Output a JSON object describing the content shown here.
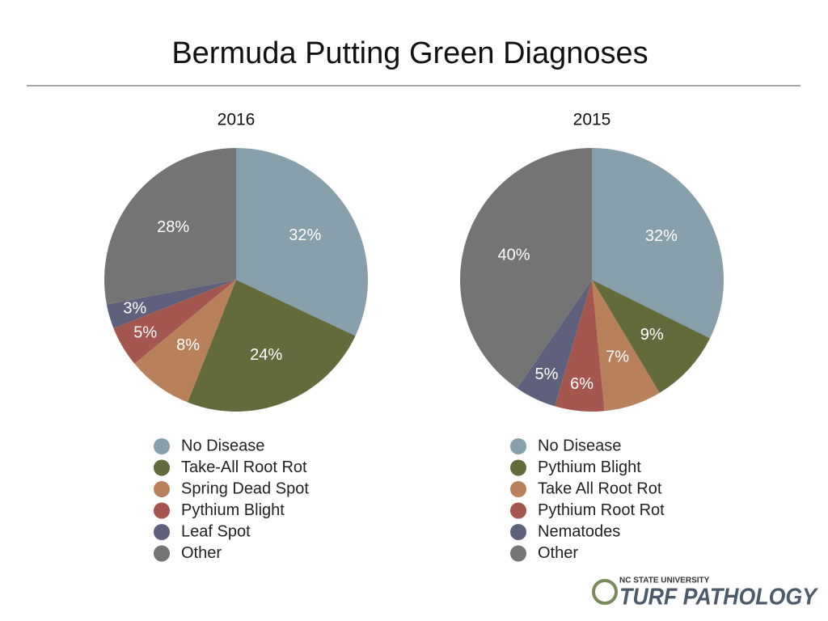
{
  "title": "Bermuda Putting Green Diagnoses",
  "chart_data": [
    {
      "type": "pie",
      "title": "2016",
      "categories": [
        "No Disease",
        "Take-All Root Rot",
        "Spring Dead Spot",
        "Pythium Blight",
        "Leaf Spot",
        "Other"
      ],
      "values": [
        32,
        24,
        8,
        5,
        3,
        28
      ],
      "value_labels": [
        "32%",
        "24%",
        "8%",
        "5%",
        "3%",
        "28%"
      ],
      "colors": [
        "#87a0ab",
        "#636b3d",
        "#b9805c",
        "#a4564f",
        "#5f617c",
        "#747474"
      ]
    },
    {
      "type": "pie",
      "title": "2015",
      "categories": [
        "No Disease",
        "Pythium Blight",
        "Take All Root Rot",
        "Pythium Root Rot",
        "Nematodes",
        "Other"
      ],
      "values": [
        32,
        9,
        7,
        6,
        5,
        40
      ],
      "value_labels": [
        "32%",
        "9%",
        "7%",
        "6%",
        "5%",
        "40%"
      ],
      "colors": [
        "#87a0ab",
        "#636b3d",
        "#b9805c",
        "#a4564f",
        "#5f617c",
        "#747474"
      ]
    }
  ],
  "logo": {
    "line1": "NC STATE UNIVERSITY",
    "line2": "TURF PATHOLOGY"
  }
}
